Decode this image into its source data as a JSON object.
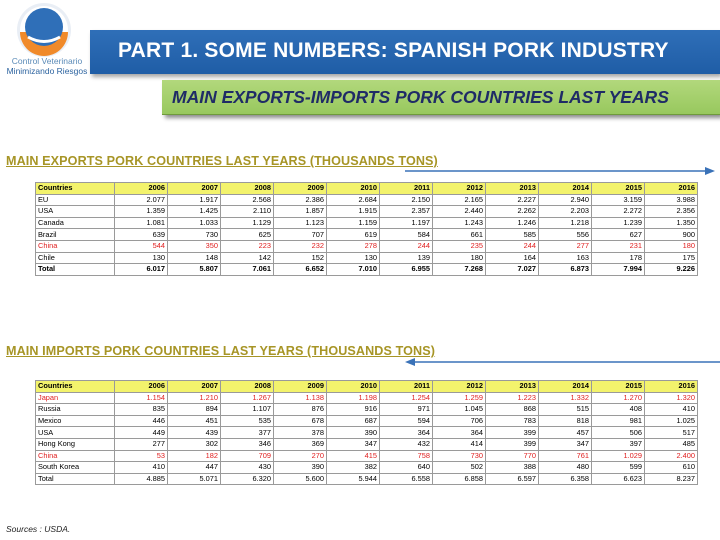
{
  "logo": {
    "line1": "Control Veterinario",
    "line2": "Minimizando Riesgos"
  },
  "title": "PART 1. SOME NUMBERS: SPANISH PORK INDUSTRY",
  "subtitle": "MAIN EXPORTS-IMPORTS PORK COUNTRIES LAST YEARS",
  "exports": {
    "heading": "MAIN EXPORTS PORK COUNTRIES LAST YEARS (THOUSANDS TONS)",
    "columns": [
      "Countries",
      "2006",
      "2007",
      "2008",
      "2009",
      "2010",
      "2011",
      "2012",
      "2013",
      "2014",
      "2015",
      "2016"
    ],
    "rows": [
      {
        "cells": [
          "EU",
          "2.077",
          "1.917",
          "2.568",
          "2.386",
          "2.684",
          "2.150",
          "2.165",
          "2.227",
          "2.940",
          "3.159",
          "3.988"
        ],
        "style": ""
      },
      {
        "cells": [
          "USA",
          "1.359",
          "1.425",
          "2.110",
          "1.857",
          "1.915",
          "2.357",
          "2.440",
          "2.262",
          "2.203",
          "2.272",
          "2.356"
        ],
        "style": ""
      },
      {
        "cells": [
          "Canada",
          "1.081",
          "1.033",
          "1.129",
          "1.123",
          "1.159",
          "1.197",
          "1.243",
          "1.246",
          "1.218",
          "1.239",
          "1.350"
        ],
        "style": ""
      },
      {
        "cells": [
          "Brazil",
          "639",
          "730",
          "625",
          "707",
          "619",
          "584",
          "661",
          "585",
          "556",
          "627",
          "900"
        ],
        "style": ""
      },
      {
        "cells": [
          "China",
          "544",
          "350",
          "223",
          "232",
          "278",
          "244",
          "235",
          "244",
          "277",
          "231",
          "180"
        ],
        "style": "red"
      },
      {
        "cells": [
          "Chile",
          "130",
          "148",
          "142",
          "152",
          "130",
          "139",
          "180",
          "164",
          "163",
          "178",
          "175"
        ],
        "style": ""
      },
      {
        "cells": [
          "Total",
          "6.017",
          "5.807",
          "7.061",
          "6.652",
          "7.010",
          "6.955",
          "7.268",
          "7.027",
          "6.873",
          "7.994",
          "9.226"
        ],
        "style": "bold"
      }
    ]
  },
  "imports": {
    "heading": "MAIN IMPORTS PORK COUNTRIES LAST YEARS (THOUSANDS TONS)",
    "columns": [
      "Countries",
      "2006",
      "2007",
      "2008",
      "2009",
      "2010",
      "2011",
      "2012",
      "2013",
      "2014",
      "2015",
      "2016"
    ],
    "rows": [
      {
        "cells": [
          "Japan",
          "1.154",
          "1.210",
          "1.267",
          "1.138",
          "1.198",
          "1.254",
          "1.259",
          "1.223",
          "1.332",
          "1.270",
          "1.320"
        ],
        "style": "red"
      },
      {
        "cells": [
          "Russia",
          "835",
          "894",
          "1.107",
          "876",
          "916",
          "971",
          "1.045",
          "868",
          "515",
          "408",
          "410"
        ],
        "style": ""
      },
      {
        "cells": [
          "Mexico",
          "446",
          "451",
          "535",
          "678",
          "687",
          "594",
          "706",
          "783",
          "818",
          "981",
          "1.025"
        ],
        "style": ""
      },
      {
        "cells": [
          "USA",
          "449",
          "439",
          "377",
          "378",
          "390",
          "364",
          "364",
          "399",
          "457",
          "506",
          "517"
        ],
        "style": ""
      },
      {
        "cells": [
          "Hong Kong",
          "277",
          "302",
          "346",
          "369",
          "347",
          "432",
          "414",
          "399",
          "347",
          "397",
          "485"
        ],
        "style": ""
      },
      {
        "cells": [
          "China",
          "53",
          "182",
          "709",
          "270",
          "415",
          "758",
          "730",
          "770",
          "761",
          "1.029",
          "2.400"
        ],
        "style": "red"
      },
      {
        "cells": [
          "South Korea",
          "410",
          "447",
          "430",
          "390",
          "382",
          "640",
          "502",
          "388",
          "480",
          "599",
          "610"
        ],
        "style": ""
      },
      {
        "cells": [
          "Total",
          "4.885",
          "5.071",
          "6.320",
          "5.600",
          "5.944",
          "6.558",
          "6.858",
          "6.597",
          "6.358",
          "6.623",
          "8.237"
        ],
        "style": ""
      }
    ]
  },
  "sources": "Sources : USDA.",
  "colors": {
    "title_bar": "#2f6fb8",
    "sub_bar": "#a6d06e",
    "section_heading": "#a79526",
    "header_row": "#f3f36c",
    "highlight_text": "#e02020",
    "arrow": "#3a72b8"
  }
}
